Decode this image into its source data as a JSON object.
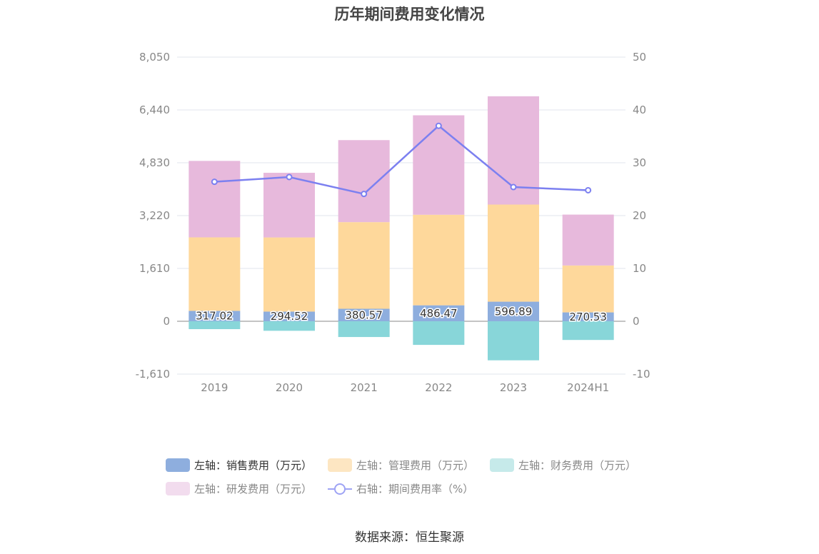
{
  "title": "历年期间费用变化情况",
  "source": "数据来源：恒生聚源",
  "legend": [
    {
      "label": "左轴：销售费用（万元）",
      "color": "#8eaede",
      "kind": "bar",
      "active": true
    },
    {
      "label": "左轴：管理费用（万元）",
      "color": "#fde6c2",
      "kind": "bar",
      "active": false
    },
    {
      "label": "左轴：财务费用（万元）",
      "color": "#c6eaea",
      "kind": "bar",
      "active": false
    },
    {
      "label": "左轴：研发费用（万元）",
      "color": "#f2dcee",
      "kind": "bar",
      "active": false
    },
    {
      "label": "右轴：期间费用率（%）",
      "color": "#7c80f0",
      "kind": "line",
      "active": false
    }
  ],
  "chart_data": {
    "type": "bar",
    "stacked": true,
    "categories": [
      "2019",
      "2020",
      "2021",
      "2022",
      "2023",
      "2024H1"
    ],
    "left_axis": {
      "ticks": [
        "8,050",
        "6,440",
        "4,830",
        "3,220",
        "1,610",
        "0",
        "-1,610"
      ],
      "ylim": [
        -1610,
        8050
      ]
    },
    "right_axis": {
      "ticks": [
        "50",
        "40",
        "30",
        "20",
        "10",
        "0",
        "-10"
      ],
      "ylim": [
        -10,
        50
      ]
    },
    "series": [
      {
        "name": "左轴：销售费用（万元）",
        "axis": "left",
        "color": "#8eaede",
        "values": [
          317.02,
          294.52,
          380.57,
          486.47,
          596.89,
          270.53
        ],
        "labels": [
          "317.02",
          "294.52",
          "380.57",
          "486.47",
          "596.89",
          "270.53"
        ]
      },
      {
        "name": "左轴：管理费用（万元）",
        "axis": "left",
        "color": "#fed89b",
        "values": [
          2240,
          2260,
          2640,
          2760,
          2960,
          1430
        ]
      },
      {
        "name": "左轴：财务费用（万元）",
        "axis": "left",
        "color": "#88d6d9",
        "values": [
          -240,
          -290,
          -480,
          -720,
          -1190,
          -570
        ]
      },
      {
        "name": "左轴：研发费用（万元）",
        "axis": "left",
        "color": "#e7b9dc",
        "values": [
          2330,
          1970,
          2500,
          3030,
          3300,
          1550
        ]
      },
      {
        "name": "右轴：期间费用率（%）",
        "axis": "right",
        "type": "line",
        "color": "#7c80f0",
        "values": [
          26.4,
          27.3,
          24.1,
          37.0,
          25.4,
          24.8
        ]
      }
    ],
    "grid": true,
    "legend_position": "bottom"
  }
}
